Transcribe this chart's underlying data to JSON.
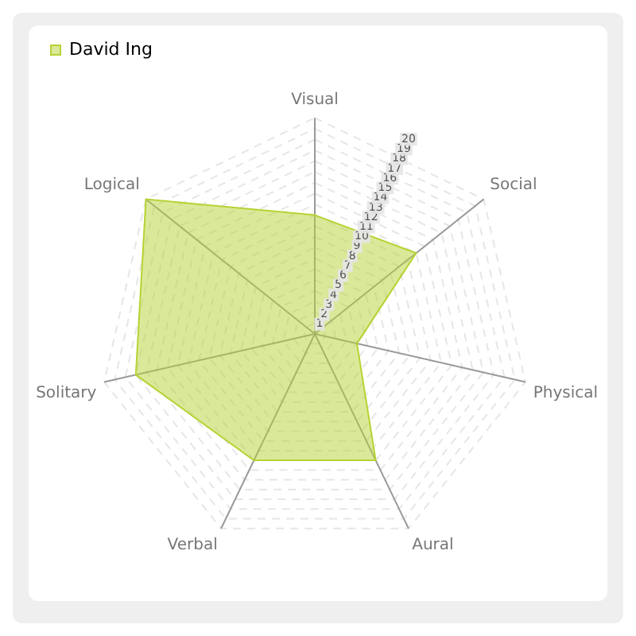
{
  "chart_data": {
    "type": "radar",
    "categories": [
      "Visual",
      "Social",
      "Physical",
      "Aural",
      "Verbal",
      "Solitary",
      "Logical"
    ],
    "series": [
      {
        "name": "David Ing",
        "color": "#b5d334",
        "values": [
          11,
          12,
          4,
          13,
          13,
          17,
          20
        ]
      }
    ],
    "ylim": [
      0,
      20
    ],
    "yticks": [
      1,
      2,
      3,
      4,
      5,
      6,
      7,
      8,
      9,
      10,
      11,
      12,
      13,
      14,
      15,
      16,
      17,
      18,
      19,
      20
    ],
    "grid": true,
    "legend": "top left",
    "marker": "none"
  }
}
